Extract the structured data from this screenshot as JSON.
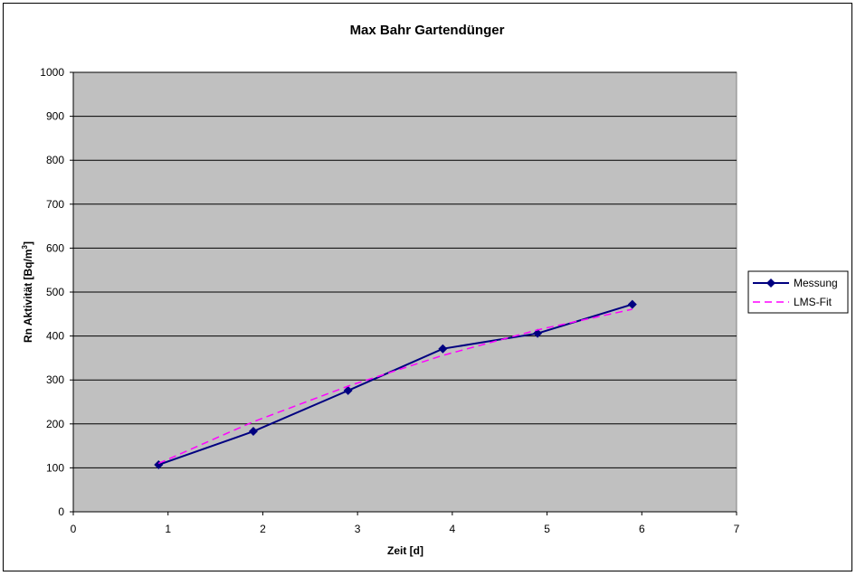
{
  "chart_data": {
    "type": "line",
    "title": "Max Bahr Gartendünger",
    "xlabel": "Zeit [d]",
    "ylabel": "Rn Aktivität [Bq/m",
    "ylabel_sup": "3",
    "ylabel_end": "]",
    "xlim": [
      0,
      7
    ],
    "ylim": [
      0,
      1000
    ],
    "xticks": [
      "0",
      "1",
      "2",
      "3",
      "4",
      "5",
      "6",
      "7"
    ],
    "yticks": [
      "0",
      "100",
      "200",
      "300",
      "400",
      "500",
      "600",
      "700",
      "800",
      "900",
      "1000"
    ],
    "grid": "horizontal",
    "plot_background": "#C0C0C0",
    "legend_position": "right",
    "series": [
      {
        "name": "Messung",
        "color": "#000080",
        "style": "solid",
        "marker": "diamond",
        "x": [
          0.9,
          1.9,
          2.9,
          3.9,
          4.9,
          5.9
        ],
        "y": [
          107,
          183,
          276,
          371,
          406,
          472
        ]
      },
      {
        "name": "LMS-Fit",
        "color": "#FF00FF",
        "style": "dashed",
        "marker": "none",
        "x": [
          0.9,
          1.9,
          2.9,
          3.9,
          4.9,
          5.9
        ],
        "y": [
          110,
          205,
          286,
          356,
          414,
          461
        ]
      }
    ]
  }
}
